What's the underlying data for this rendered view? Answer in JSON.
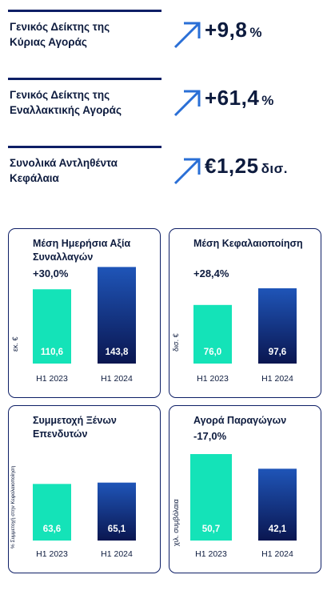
{
  "kpis": [
    {
      "label": "Γενικός Δείκτης της\nΚύριας Αγοράς",
      "value": "+9,8",
      "unit": "%"
    },
    {
      "label": "Γενικός Δείκτης της\nΕναλλακτικής Αγοράς",
      "value": "+61,4",
      "unit": "%"
    },
    {
      "label": "Συνολικά Αντληθέντα\nΚεφάλαια",
      "value": "€1,25",
      "unit": "δισ."
    }
  ],
  "colors": {
    "navy": "#0e1f66",
    "teal": "#14e3b8",
    "text": "#0d1b3e",
    "arrow": "#2a6fd6"
  },
  "chart_data": [
    {
      "type": "bar",
      "title": "Μέση Ημερήσια Αξία Συναλλαγών",
      "change": "+30,0%",
      "ylabel": "εκ. €",
      "categories": [
        "H1 2023",
        "H1 2024"
      ],
      "values": [
        110.6,
        143.8
      ],
      "value_labels": [
        "110,6",
        "143,8"
      ],
      "ylim": [
        0,
        155
      ]
    },
    {
      "type": "bar",
      "title": "Μέση Κεφαλαιοποίηση",
      "change": "+28,4%",
      "ylabel": "δισ. €",
      "categories": [
        "H1 2023",
        "H1 2024"
      ],
      "values": [
        76.0,
        97.6
      ],
      "value_labels": [
        "76,0",
        "97,6"
      ],
      "ylim": [
        0,
        135
      ]
    },
    {
      "type": "bar",
      "title": "Συμμετοχή Ξένων Επενδυτών",
      "change": "",
      "ylabel": "% Συμμετοχή στην Κεφαλαιοποίηση",
      "categories": [
        "H1 2023",
        "H1 2024"
      ],
      "values": [
        63.6,
        65.1
      ],
      "value_labels": [
        "63,6",
        "65,1"
      ],
      "ylim": [
        0,
        90
      ]
    },
    {
      "type": "bar",
      "title": "Αγορά Παραγώγων",
      "change": "-17,0%",
      "ylabel": "χιλ. συμβόλαια",
      "categories": [
        "H1 2023",
        "H1 2024"
      ],
      "values": [
        50.7,
        42.1
      ],
      "value_labels": [
        "50,7",
        "42,1"
      ],
      "ylim": [
        0,
        54
      ]
    }
  ]
}
